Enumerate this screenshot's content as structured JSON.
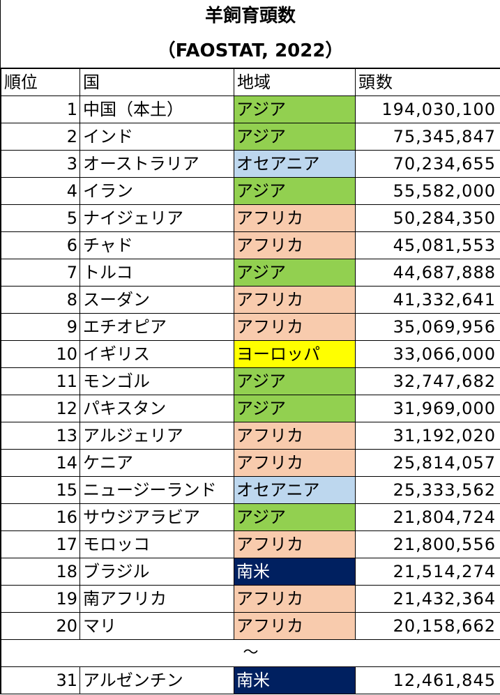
{
  "title": {
    "line1": "羊飼育頭数",
    "line2": "（FAOSTAT, 2022）"
  },
  "header": {
    "rank": "順位",
    "country": "国",
    "region": "地域",
    "count": "頭数"
  },
  "colors": {
    "アジア": "#92d050",
    "オセアニア": "#bdd7ee",
    "アフリカ": "#f8cbad",
    "ヨーロッパ": "#ffff00",
    "南米": "#002060"
  },
  "rows": [
    {
      "rank": "1",
      "country": "中国（本土）",
      "region": "アジア",
      "count": "194,030,100"
    },
    {
      "rank": "2",
      "country": "インド",
      "region": "アジア",
      "count": "75,345,847"
    },
    {
      "rank": "3",
      "country": "オーストラリア",
      "region": "オセアニア",
      "count": "70,234,655"
    },
    {
      "rank": "4",
      "country": "イラン",
      "region": "アジア",
      "count": "55,582,000"
    },
    {
      "rank": "5",
      "country": "ナイジェリア",
      "region": "アフリカ",
      "count": "50,284,350"
    },
    {
      "rank": "6",
      "country": "チャド",
      "region": "アフリカ",
      "count": "45,081,553"
    },
    {
      "rank": "7",
      "country": "トルコ",
      "region": "アジア",
      "count": "44,687,888"
    },
    {
      "rank": "8",
      "country": "スーダン",
      "region": "アフリカ",
      "count": "41,332,641"
    },
    {
      "rank": "9",
      "country": "エチオピア",
      "region": "アフリカ",
      "count": "35,069,956"
    },
    {
      "rank": "10",
      "country": "イギリス",
      "region": "ヨーロッパ",
      "count": "33,066,000"
    },
    {
      "rank": "11",
      "country": "モンゴル",
      "region": "アジア",
      "count": "32,747,682"
    },
    {
      "rank": "12",
      "country": "パキスタン",
      "region": "アジア",
      "count": "31,969,000"
    },
    {
      "rank": "13",
      "country": "アルジェリア",
      "region": "アフリカ",
      "count": "31,192,020"
    },
    {
      "rank": "14",
      "country": "ケニア",
      "region": "アフリカ",
      "count": "25,814,057"
    },
    {
      "rank": "15",
      "country": "ニュージーランド",
      "region": "オセアニア",
      "count": "25,333,562"
    },
    {
      "rank": "16",
      "country": "サウジアラビア",
      "region": "アジア",
      "count": "21,804,724"
    },
    {
      "rank": "17",
      "country": "モロッコ",
      "region": "アフリカ",
      "count": "21,800,556"
    },
    {
      "rank": "18",
      "country": "ブラジル",
      "region": "南米",
      "count": "21,514,274"
    },
    {
      "rank": "19",
      "country": "南アフリカ",
      "region": "アフリカ",
      "count": "21,432,364"
    },
    {
      "rank": "20",
      "country": "マリ",
      "region": "アフリカ",
      "count": "20,158,662"
    }
  ],
  "ellipsis": "～",
  "last_row": {
    "rank": "31",
    "country": "アルゼンチン",
    "region": "南米",
    "count": "12,461,845"
  }
}
